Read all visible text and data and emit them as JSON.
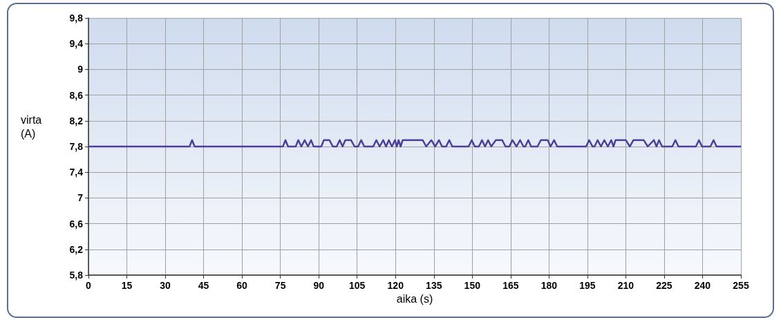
{
  "chart_data": {
    "type": "line",
    "xlabel": "aika (s)",
    "ylabel": "virta\n(A)",
    "x": [
      0,
      39.5,
      40.5,
      41.5,
      76,
      77,
      78,
      81,
      82,
      83.2,
      84.5,
      85.8,
      87,
      88,
      91,
      92,
      94.2,
      95.5,
      97,
      98.2,
      99.3,
      100.4,
      102.6,
      104,
      105.4,
      106.6,
      107.8,
      111.3,
      112.5,
      113.8,
      115.2,
      116.3,
      117.4,
      118.6,
      119.8,
      120.5,
      121.2,
      122,
      122.8,
      130.6,
      132,
      134,
      135.5,
      137,
      138.2,
      139.8,
      141,
      142.2,
      148.6,
      149.8,
      151,
      152.6,
      153.8,
      155,
      156.2,
      157.4,
      159.2,
      161.7,
      163,
      164.5,
      165.7,
      167.3,
      168.7,
      170,
      170.7,
      171.9,
      173,
      175.5,
      176.8,
      179.5,
      180.6,
      182,
      183.2,
      194.5,
      195.7,
      197,
      197.8,
      199,
      200.3,
      201.6,
      203,
      204.3,
      205.2,
      206,
      210,
      211.6,
      213,
      217,
      218.6,
      221,
      222,
      223,
      224.2,
      228.2,
      229.4,
      230.6,
      237.4,
      238.6,
      239.8,
      243.1,
      244.3,
      245.5,
      255
    ],
    "series": [
      {
        "color": "#4b3f9a",
        "values": [
          7.8,
          7.8,
          7.9,
          7.8,
          7.8,
          7.9,
          7.8,
          7.8,
          7.9,
          7.8,
          7.9,
          7.8,
          7.9,
          7.8,
          7.8,
          7.9,
          7.9,
          7.8,
          7.8,
          7.9,
          7.8,
          7.9,
          7.9,
          7.8,
          7.8,
          7.9,
          7.8,
          7.8,
          7.9,
          7.8,
          7.9,
          7.8,
          7.9,
          7.8,
          7.9,
          7.8,
          7.9,
          7.8,
          7.9,
          7.9,
          7.8,
          7.9,
          7.8,
          7.9,
          7.8,
          7.8,
          7.9,
          7.8,
          7.8,
          7.9,
          7.8,
          7.8,
          7.9,
          7.8,
          7.9,
          7.8,
          7.9,
          7.9,
          7.8,
          7.8,
          7.9,
          7.8,
          7.9,
          7.8,
          7.8,
          7.9,
          7.8,
          7.8,
          7.9,
          7.9,
          7.8,
          7.9,
          7.8,
          7.8,
          7.9,
          7.8,
          7.8,
          7.9,
          7.8,
          7.9,
          7.8,
          7.9,
          7.8,
          7.9,
          7.9,
          7.8,
          7.9,
          7.9,
          7.8,
          7.9,
          7.8,
          7.9,
          7.8,
          7.8,
          7.9,
          7.8,
          7.8,
          7.9,
          7.8,
          7.8,
          7.9,
          7.8,
          7.8
        ]
      }
    ],
    "xlim": [
      0,
      255
    ],
    "xticks": [
      0,
      15,
      30,
      45,
      60,
      75,
      90,
      105,
      120,
      135,
      150,
      165,
      180,
      195,
      210,
      225,
      240,
      255
    ],
    "ylim": [
      5.8,
      9.8
    ],
    "yticks": [
      {
        "value": 5.8,
        "label": "5,8"
      },
      {
        "value": 6.2,
        "label": "6,2"
      },
      {
        "value": 6.6,
        "label": "6,6"
      },
      {
        "value": 7,
        "label": "7"
      },
      {
        "value": 7.4,
        "label": "7,4"
      },
      {
        "value": 7.8,
        "label": "7,8"
      },
      {
        "value": 8.2,
        "label": "8,2"
      },
      {
        "value": 8.6,
        "label": "8,6"
      },
      {
        "value": 9,
        "label": "9"
      },
      {
        "value": 9.4,
        "label": "9,4"
      },
      {
        "value": 9.8,
        "label": "9,8"
      }
    ],
    "grid": true,
    "marker": "none",
    "line_style": "solid"
  }
}
